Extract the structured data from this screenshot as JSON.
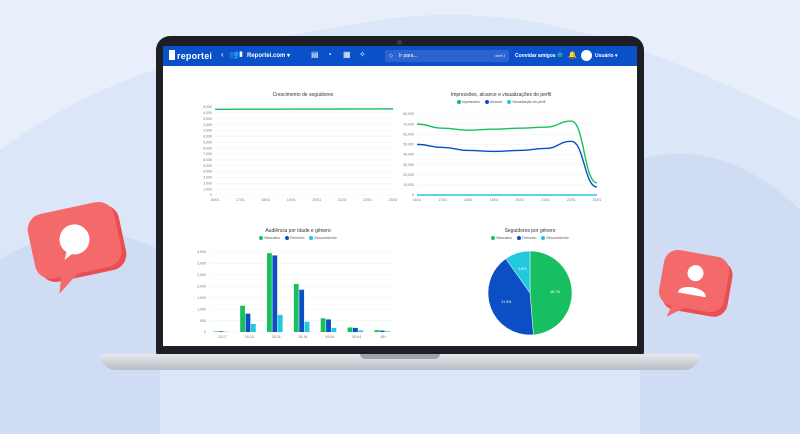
{
  "topbar": {
    "app_name": "reportei",
    "site_label": "Reportei.com",
    "search_placeholder": "Ir para...",
    "search_shortcut": "ctrl+J",
    "invite_label": "Convidar amigos",
    "user_label": "Usuário"
  },
  "colors": {
    "background": "#dbe6f8",
    "topbar": "#0a50c8",
    "series_green": "#16c060",
    "series_blue": "#0c4fc4",
    "series_cyan": "#22c7e0",
    "bubble_red": "#f05a5a"
  },
  "icons": [
    "chat-bubble-icon",
    "user-bubble-icon",
    "search-icon",
    "bell-icon",
    "plus-icon",
    "users-icon",
    "chevron-down-icon"
  ],
  "chart_data": [
    {
      "type": "line",
      "title": "Crescimento de seguidores",
      "categories": [
        "16/01",
        "17/01",
        "18/01",
        "19/01",
        "20/01",
        "21/01",
        "22/01",
        "23/01"
      ],
      "series": [
        {
          "values": [
            14600,
            14620,
            14630,
            14640,
            14650,
            14660,
            14670,
            14680
          ]
        }
      ],
      "ylim": [
        0,
        15000
      ],
      "yticks": [
        "15,000",
        "14,000",
        "13,000",
        "12,000",
        "11,000",
        "10,000",
        "9,000",
        "8,000",
        "7,000",
        "6,000",
        "5,000",
        "4,000",
        "3,000",
        "2,000",
        "1,000",
        "0"
      ]
    },
    {
      "type": "line",
      "title": "Impressões, alcance e visualizações do perfil",
      "categories": [
        "16/01",
        "17/01",
        "18/01",
        "19/01",
        "20/01",
        "21/01",
        "22/01",
        "23/01"
      ],
      "series": [
        {
          "name": "Impressões",
          "values": [
            70000,
            66000,
            64000,
            65000,
            66000,
            67000,
            73000,
            12000
          ]
        },
        {
          "name": "Alcance",
          "values": [
            50000,
            47000,
            44000,
            43000,
            44000,
            46000,
            53000,
            8000
          ]
        },
        {
          "name": "Visualização do perfil",
          "values": [
            0,
            0,
            0,
            0,
            0,
            0,
            0,
            0
          ]
        }
      ],
      "ylim": [
        0,
        80000
      ],
      "yticks": [
        "80,000",
        "70,000",
        "60,000",
        "50,000",
        "40,000",
        "30,000",
        "20,000",
        "10,000",
        "0"
      ]
    },
    {
      "type": "bar",
      "title": "Audiência por idade e gênero",
      "categories": [
        "13-17",
        "18-24",
        "25-34",
        "35-44",
        "45-54",
        "55-64",
        "65+"
      ],
      "series": [
        {
          "name": "Masculino",
          "values": [
            20,
            1150,
            3450,
            2100,
            600,
            200,
            80
          ]
        },
        {
          "name": "Feminino",
          "values": [
            30,
            800,
            3350,
            1850,
            550,
            180,
            60
          ]
        },
        {
          "name": "Desconhecido",
          "values": [
            10,
            350,
            750,
            450,
            180,
            70,
            30
          ]
        }
      ],
      "ylim": [
        0,
        3500
      ],
      "yticks": [
        "3,500",
        "3,000",
        "2,500",
        "2,000",
        "1,500",
        "1,000",
        "500",
        "0"
      ]
    },
    {
      "type": "pie",
      "title": "Seguidores por gênero",
      "series": [
        {
          "name": "Masculino",
          "value": 48.7,
          "label": "48.7%"
        },
        {
          "name": "Feminino",
          "value": 41.5,
          "label": "41.5%"
        },
        {
          "name": "Desconhecido",
          "value": 9.8,
          "label": "9.8%"
        }
      ]
    }
  ]
}
